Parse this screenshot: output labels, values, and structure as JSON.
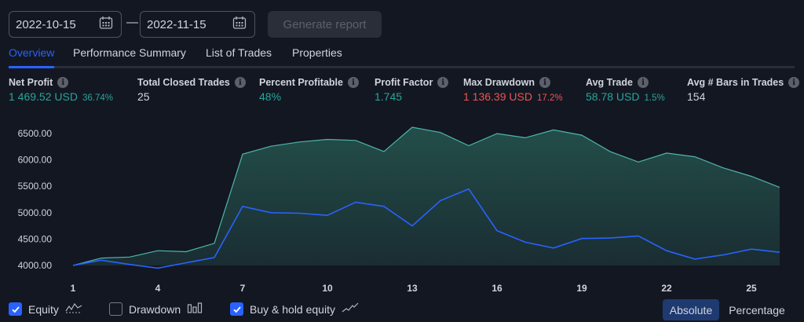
{
  "dates": {
    "start": "2022-10-15",
    "separator": "—",
    "end": "2022-11-15"
  },
  "generate_report_label": "Generate report",
  "tabs": [
    {
      "label": "Overview"
    },
    {
      "label": "Performance Summary"
    },
    {
      "label": "List of Trades"
    },
    {
      "label": "Properties"
    }
  ],
  "metrics": [
    {
      "label": "Net Profit",
      "value": "1 469.52 USD",
      "pct": "36.74%"
    },
    {
      "label": "Total Closed Trades",
      "value": "25"
    },
    {
      "label": "Percent Profitable",
      "value": "48%"
    },
    {
      "label": "Profit Factor",
      "value": "1.745"
    },
    {
      "label": "Max Drawdown",
      "value": "1 136.39 USD",
      "pct": "17.2%"
    },
    {
      "label": "Avg Trade",
      "value": "58.78 USD",
      "pct": "1.5%"
    },
    {
      "label": "Avg # Bars in Trades",
      "value": "154"
    }
  ],
  "info_icon_glyph": "i",
  "legend": [
    {
      "label": "Equity",
      "checked": true,
      "icon": "equity-icon"
    },
    {
      "label": "Drawdown",
      "checked": false,
      "icon": "drawdown-icon"
    },
    {
      "label": "Buy & hold equity",
      "checked": true,
      "icon": "buy-hold-icon"
    }
  ],
  "view_toggle": {
    "absolute": "Absolute",
    "percentage": "Percentage",
    "selected": "Absolute"
  },
  "colors": {
    "background": "#131722",
    "accent": "#2962ff",
    "profit": "#26a69a",
    "loss": "#ef5350",
    "equity_line": "#4db6ac",
    "equity_fill": "#1f3d3a",
    "buy_hold_line": "#2962ff"
  },
  "chart_data": {
    "type": "area",
    "x": [
      1,
      2,
      3,
      4,
      5,
      6,
      7,
      8,
      9,
      10,
      11,
      12,
      13,
      14,
      15,
      16,
      17,
      18,
      19,
      20,
      21,
      22,
      23,
      24,
      25,
      26
    ],
    "x_tick_labels": [
      "1",
      "4",
      "7",
      "10",
      "13",
      "16",
      "19",
      "22",
      "25"
    ],
    "y_tick_labels": [
      "4000.00",
      "4500.00",
      "5000.00",
      "5500.00",
      "6000.00",
      "6500.00"
    ],
    "ylim": [
      4000,
      6650
    ],
    "grid": false,
    "series": [
      {
        "name": "Equity",
        "values": [
          4000,
          4140,
          4160,
          4280,
          4260,
          4420,
          6110,
          6260,
          6340,
          6390,
          6370,
          6160,
          6620,
          6520,
          6270,
          6500,
          6420,
          6570,
          6470,
          6160,
          5960,
          6130,
          6060,
          5850,
          5690,
          5480
        ]
      },
      {
        "name": "Buy & hold equity",
        "values": [
          4000,
          4100,
          4020,
          3950,
          4050,
          4150,
          5120,
          5000,
          4990,
          4950,
          5200,
          5120,
          4750,
          5230,
          5450,
          4660,
          4440,
          4330,
          4510,
          4520,
          4560,
          4280,
          4120,
          4200,
          4310,
          4250
        ]
      }
    ]
  }
}
